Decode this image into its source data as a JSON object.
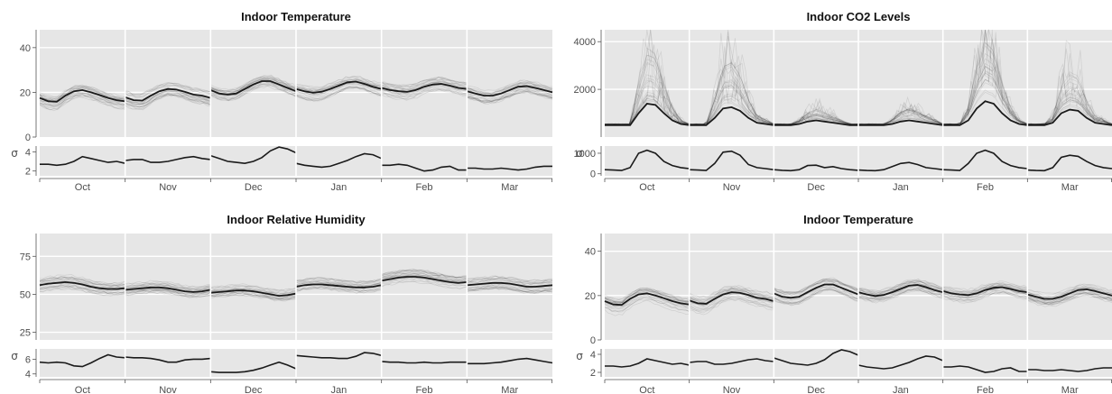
{
  "chart_data": [
    {
      "type": "line",
      "title": "Indoor Temperature",
      "months": [
        "Oct",
        "Nov",
        "Dec",
        "Jan",
        "Feb",
        "Mar"
      ],
      "main": {
        "ylim": [
          0,
          48
        ],
        "yticks": [
          0,
          20,
          40
        ],
        "x": [
          0,
          0.1,
          0.2,
          0.3,
          0.4,
          0.5,
          0.6,
          0.7,
          0.8,
          0.9,
          1.0
        ],
        "series": [
          {
            "values": [
              17.5,
              16.0,
              15.8,
              18.5,
              20.5,
              21.0,
              20.0,
              18.8,
              17.5,
              16.5,
              16.0
            ]
          },
          {
            "values": [
              17.8,
              16.5,
              16.3,
              18.5,
              20.5,
              21.5,
              21.2,
              20.2,
              19.0,
              18.5,
              17.5
            ]
          },
          {
            "values": [
              21.0,
              19.5,
              19.0,
              19.5,
              21.5,
              23.5,
              25.0,
              25.0,
              23.5,
              22.0,
              20.5
            ]
          },
          {
            "values": [
              21.5,
              20.5,
              19.8,
              20.3,
              21.5,
              23.0,
              24.5,
              24.8,
              23.8,
              22.5,
              21.5
            ]
          },
          {
            "values": [
              22.0,
              21.0,
              20.5,
              20.2,
              21.0,
              22.5,
              23.5,
              23.8,
              23.0,
              22.0,
              21.5
            ]
          },
          {
            "values": [
              20.5,
              19.5,
              18.5,
              18.5,
              19.5,
              21.0,
              22.5,
              22.8,
              22.0,
              21.0,
              20.0
            ]
          }
        ]
      },
      "sigma": {
        "label": "σ",
        "ylim": [
          1.5,
          4.6
        ],
        "yticks": [
          2,
          4
        ],
        "series": [
          {
            "values": [
              2.7,
              2.7,
              2.6,
              2.7,
              3.0,
              3.5,
              3.3,
              3.1,
              2.9,
              3.0,
              2.8
            ]
          },
          {
            "values": [
              3.1,
              3.2,
              3.2,
              2.9,
              2.9,
              3.0,
              3.2,
              3.4,
              3.5,
              3.3,
              3.2
            ]
          },
          {
            "values": [
              3.6,
              3.3,
              3.0,
              2.9,
              2.8,
              3.0,
              3.4,
              4.1,
              4.5,
              4.3,
              3.9
            ]
          },
          {
            "values": [
              2.8,
              2.6,
              2.5,
              2.4,
              2.5,
              2.8,
              3.1,
              3.5,
              3.8,
              3.7,
              3.3
            ]
          },
          {
            "values": [
              2.6,
              2.6,
              2.7,
              2.6,
              2.3,
              2.0,
              2.1,
              2.4,
              2.5,
              2.1,
              2.1
            ]
          },
          {
            "values": [
              2.3,
              2.3,
              2.2,
              2.2,
              2.3,
              2.2,
              2.1,
              2.2,
              2.4,
              2.5,
              2.5
            ]
          }
        ]
      }
    },
    {
      "type": "line",
      "title": "Indoor CO2 Levels",
      "months": [
        "Oct",
        "Nov",
        "Dec",
        "Jan",
        "Feb",
        "Mar"
      ],
      "main": {
        "ylim": [
          0,
          4500
        ],
        "yticks": [
          2000,
          4000
        ],
        "x": [
          0,
          0.1,
          0.2,
          0.3,
          0.4,
          0.5,
          0.6,
          0.7,
          0.8,
          0.9,
          1.0
        ],
        "series": [
          {
            "values": [
              500,
              500,
              500,
              500,
              1000,
              1400,
              1350,
              1000,
              700,
              550,
              500
            ]
          },
          {
            "values": [
              500,
              500,
              500,
              800,
              1200,
              1250,
              1100,
              800,
              600,
              550,
              500
            ]
          },
          {
            "values": [
              500,
              500,
              500,
              550,
              650,
              700,
              650,
              600,
              550,
              500,
              500
            ]
          },
          {
            "values": [
              500,
              500,
              500,
              500,
              550,
              650,
              700,
              650,
              600,
              550,
              500
            ]
          },
          {
            "values": [
              500,
              500,
              500,
              700,
              1200,
              1500,
              1400,
              1000,
              700,
              550,
              500
            ]
          },
          {
            "values": [
              500,
              500,
              500,
              600,
              1000,
              1150,
              1100,
              800,
              600,
              550,
              500
            ]
          }
        ]
      },
      "sigma": {
        "label": "σ",
        "ylim": [
          -100,
          1350
        ],
        "yticks": [
          0,
          1000
        ],
        "series": [
          {
            "values": [
              200,
              180,
              160,
              300,
              1000,
              1150,
              1000,
              600,
              400,
              300,
              250
            ]
          },
          {
            "values": [
              200,
              180,
              160,
              500,
              1050,
              1100,
              900,
              450,
              300,
              250,
              200
            ]
          },
          {
            "values": [
              200,
              170,
              150,
              200,
              400,
              420,
              300,
              350,
              250,
              200,
              170
            ]
          },
          {
            "values": [
              180,
              160,
              150,
              200,
              350,
              500,
              550,
              450,
              300,
              250,
              200
            ]
          },
          {
            "values": [
              200,
              180,
              160,
              500,
              1000,
              1150,
              1000,
              600,
              400,
              300,
              250
            ]
          },
          {
            "values": [
              180,
              160,
              150,
              300,
              800,
              900,
              850,
              600,
              400,
              300,
              250
            ]
          }
        ]
      }
    },
    {
      "type": "line",
      "title": "Indoor Relative Humidity",
      "months": [
        "Oct",
        "Nov",
        "Dec",
        "Jan",
        "Feb",
        "Mar"
      ],
      "main": {
        "ylim": [
          20,
          90
        ],
        "yticks": [
          25,
          50,
          75
        ],
        "x": [
          0,
          0.1,
          0.2,
          0.3,
          0.4,
          0.5,
          0.6,
          0.7,
          0.8,
          0.9,
          1.0
        ],
        "series": [
          {
            "values": [
              56,
              57,
              57.5,
              58,
              57.5,
              56.5,
              55,
              54,
              53.5,
              53.5,
              54
            ]
          },
          {
            "values": [
              53,
              53.5,
              54,
              54.5,
              54.5,
              54,
              53,
              52,
              51.5,
              52,
              53
            ]
          },
          {
            "values": [
              51,
              51.5,
              52,
              52.5,
              52.5,
              52,
              51,
              50,
              49,
              49.5,
              50.5
            ]
          },
          {
            "values": [
              55,
              56,
              56.5,
              56.5,
              56,
              55.5,
              55,
              54.5,
              54.5,
              55,
              56
            ]
          },
          {
            "values": [
              59,
              60,
              61,
              61.5,
              61.5,
              61,
              60,
              59,
              58,
              57.5,
              58
            ]
          },
          {
            "values": [
              56,
              56.5,
              57,
              57.5,
              57.5,
              57,
              56,
              55,
              55,
              55.5,
              56
            ]
          }
        ]
      },
      "sigma": {
        "label": "σ",
        "ylim": [
          3.6,
          7.4
        ],
        "yticks": [
          4,
          6
        ],
        "series": [
          {
            "values": [
              5.6,
              5.5,
              5.6,
              5.5,
              5.1,
              5.0,
              5.5,
              6.1,
              6.6,
              6.3,
              6.2
            ]
          },
          {
            "values": [
              6.3,
              6.2,
              6.2,
              6.1,
              5.9,
              5.6,
              5.6,
              5.9,
              6.0,
              6.0,
              6.1
            ]
          },
          {
            "values": [
              4.3,
              4.2,
              4.2,
              4.2,
              4.3,
              4.5,
              4.8,
              5.2,
              5.6,
              5.2,
              4.7
            ]
          },
          {
            "values": [
              6.5,
              6.4,
              6.3,
              6.2,
              6.2,
              6.1,
              6.1,
              6.4,
              6.9,
              6.8,
              6.5
            ]
          },
          {
            "values": [
              5.7,
              5.6,
              5.6,
              5.5,
              5.5,
              5.6,
              5.5,
              5.5,
              5.6,
              5.6,
              5.6
            ]
          },
          {
            "values": [
              5.4,
              5.4,
              5.4,
              5.5,
              5.6,
              5.8,
              6.0,
              6.1,
              5.9,
              5.7,
              5.5
            ]
          }
        ]
      }
    },
    {
      "type": "line",
      "title": "Indoor Temperature",
      "months": [
        "Oct",
        "Nov",
        "Dec",
        "Jan",
        "Feb",
        "Mar"
      ],
      "main": {
        "ylim": [
          0,
          48
        ],
        "yticks": [
          0,
          20,
          40
        ],
        "x": [
          0,
          0.1,
          0.2,
          0.3,
          0.4,
          0.5,
          0.6,
          0.7,
          0.8,
          0.9,
          1.0
        ],
        "series": [
          {
            "values": [
              17.5,
              16.0,
              15.8,
              18.5,
              20.5,
              21.0,
              20.0,
              18.8,
              17.5,
              16.5,
              16.0
            ]
          },
          {
            "values": [
              17.8,
              16.5,
              16.3,
              18.5,
              20.5,
              21.5,
              21.2,
              20.2,
              19.0,
              18.5,
              17.5
            ]
          },
          {
            "values": [
              21.0,
              19.5,
              19.0,
              19.5,
              21.5,
              23.5,
              25.0,
              25.0,
              23.5,
              22.0,
              20.5
            ]
          },
          {
            "values": [
              21.5,
              20.5,
              19.8,
              20.3,
              21.5,
              23.0,
              24.5,
              24.8,
              23.8,
              22.5,
              21.5
            ]
          },
          {
            "values": [
              22.0,
              21.0,
              20.5,
              20.2,
              21.0,
              22.5,
              23.5,
              23.8,
              23.0,
              22.0,
              21.5
            ]
          },
          {
            "values": [
              20.5,
              19.5,
              18.5,
              18.5,
              19.5,
              21.0,
              22.5,
              22.8,
              22.0,
              21.0,
              20.0
            ]
          }
        ]
      },
      "sigma": {
        "label": "σ",
        "ylim": [
          1.5,
          4.6
        ],
        "yticks": [
          2,
          4
        ],
        "series": [
          {
            "values": [
              2.7,
              2.7,
              2.6,
              2.7,
              3.0,
              3.5,
              3.3,
              3.1,
              2.9,
              3.0,
              2.8
            ]
          },
          {
            "values": [
              3.1,
              3.2,
              3.2,
              2.9,
              2.9,
              3.0,
              3.2,
              3.4,
              3.5,
              3.3,
              3.2
            ]
          },
          {
            "values": [
              3.6,
              3.3,
              3.0,
              2.9,
              2.8,
              3.0,
              3.4,
              4.1,
              4.5,
              4.3,
              3.9
            ]
          },
          {
            "values": [
              2.8,
              2.6,
              2.5,
              2.4,
              2.5,
              2.8,
              3.1,
              3.5,
              3.8,
              3.7,
              3.3
            ]
          },
          {
            "values": [
              2.6,
              2.6,
              2.7,
              2.6,
              2.3,
              2.0,
              2.1,
              2.4,
              2.5,
              2.1,
              2.1
            ]
          },
          {
            "values": [
              2.3,
              2.3,
              2.2,
              2.2,
              2.3,
              2.2,
              2.1,
              2.2,
              2.4,
              2.5,
              2.5
            ]
          }
        ]
      }
    }
  ]
}
